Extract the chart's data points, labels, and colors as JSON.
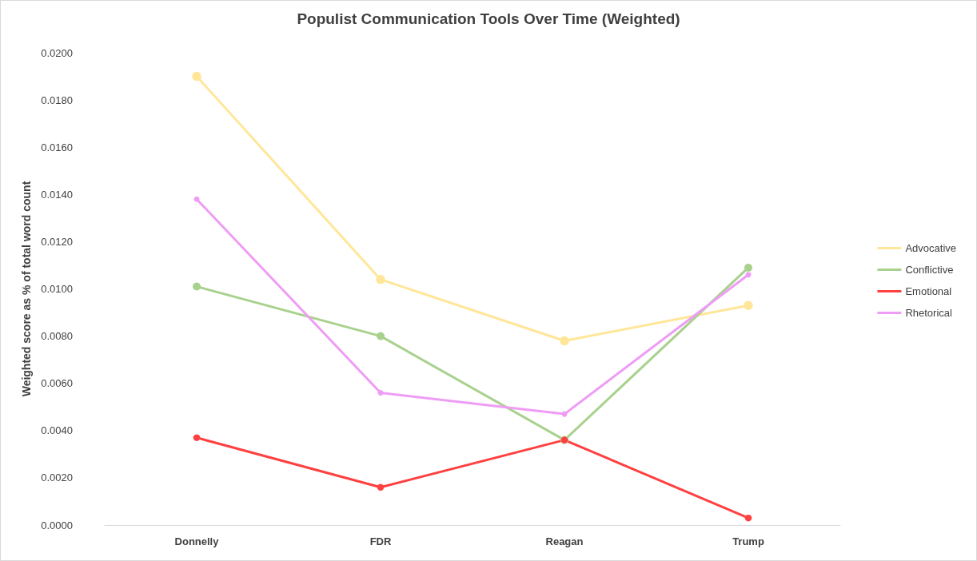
{
  "chart_data": {
    "type": "line",
    "title": "Populist Communication Tools Over Time (Weighted)",
    "ylabel": "Weighted score as % of total word count",
    "categories": [
      "Donnelly",
      "FDR",
      "Reagan",
      "Trump"
    ],
    "series": [
      {
        "name": "Advocative",
        "color": "#ffe699",
        "values": [
          0.019,
          0.0104,
          0.0078,
          0.0093
        ]
      },
      {
        "name": "Conflictive",
        "color": "#a9d18e",
        "values": [
          0.0101,
          0.008,
          0.0036,
          0.0109
        ]
      },
      {
        "name": "Emotional",
        "color": "#ff4040",
        "values": [
          0.0037,
          0.0016,
          0.0036,
          0.0003
        ]
      },
      {
        "name": "Rhetorical",
        "color": "#ee9cf5",
        "values": [
          0.0138,
          0.0056,
          0.0047,
          0.0106
        ]
      }
    ],
    "ylim": [
      0,
      0.02
    ],
    "yticks": [
      {
        "value": 0,
        "label": "0.0000"
      },
      {
        "value": 0.002,
        "label": "0.0020"
      },
      {
        "value": 0.004,
        "label": "0.0040"
      },
      {
        "value": 0.006,
        "label": "0.0060"
      },
      {
        "value": 0.008,
        "label": "0.0080"
      },
      {
        "value": 0.01,
        "label": "0.0100"
      },
      {
        "value": 0.012,
        "label": "0.0120"
      },
      {
        "value": 0.014,
        "label": "0.0140"
      },
      {
        "value": 0.016,
        "label": "0.0160"
      },
      {
        "value": 0.018,
        "label": "0.0180"
      },
      {
        "value": 0.02,
        "label": "0.0200"
      }
    ],
    "grid": false,
    "legend": "right",
    "marker": "circle",
    "line_style": "solid"
  }
}
